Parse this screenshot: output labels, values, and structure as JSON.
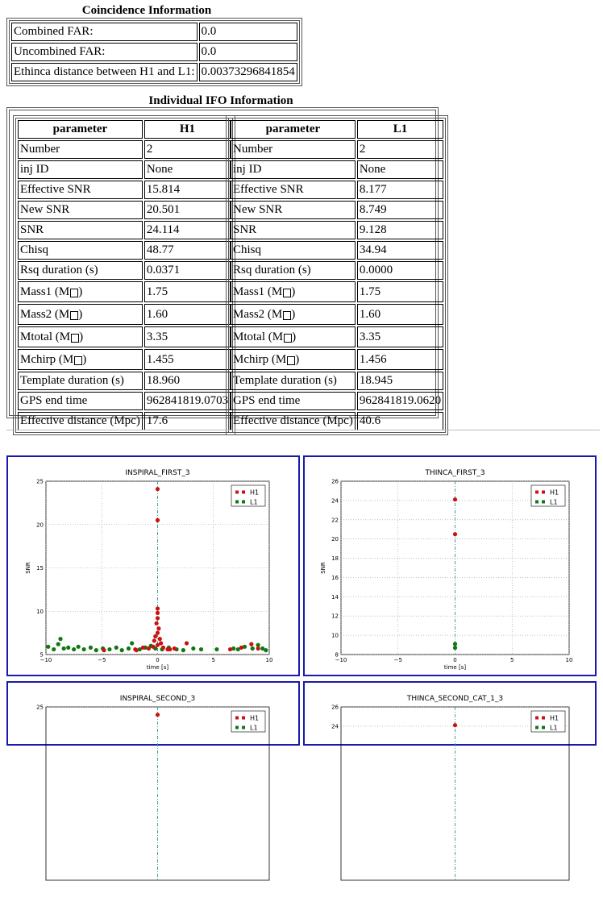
{
  "coincidence": {
    "title": "Coincidence Information",
    "rows": [
      {
        "label": "Combined FAR:",
        "value": "0.0"
      },
      {
        "label": "Uncombined FAR:",
        "value": "0.0"
      },
      {
        "label": "Ethinca distance between H1 and L1:",
        "value": "0.00373296841854"
      }
    ]
  },
  "ifo": {
    "title": "Individual IFO Information",
    "h1": {
      "headers": [
        "parameter",
        "H1"
      ],
      "rows": [
        [
          "Number",
          "2"
        ],
        [
          "inj ID",
          "None"
        ],
        [
          "Effective SNR",
          "15.814"
        ],
        [
          "New SNR",
          "20.501"
        ],
        [
          "SNR",
          "24.114"
        ],
        [
          "Chisq",
          "48.77"
        ],
        [
          "Rsq duration (s)",
          "0.0371"
        ],
        [
          "Mass1 (M",
          "1.75"
        ],
        [
          "Mass2 (M",
          "1.60"
        ],
        [
          "Mtotal (M",
          "3.35"
        ],
        [
          "Mchirp (M",
          "1.455"
        ],
        [
          "Template duration (s)",
          "18.960"
        ],
        [
          "GPS end time",
          "962841819.0703"
        ],
        [
          "Effective distance (Mpc)",
          "17.6"
        ]
      ]
    },
    "l1": {
      "headers": [
        "parameter",
        "L1"
      ],
      "rows": [
        [
          "Number",
          "2"
        ],
        [
          "inj ID",
          "None"
        ],
        [
          "Effective SNR",
          "8.177"
        ],
        [
          "New SNR",
          "8.749"
        ],
        [
          "SNR",
          "9.128"
        ],
        [
          "Chisq",
          "34.94"
        ],
        [
          "Rsq duration (s)",
          "0.0000"
        ],
        [
          "Mass1 (M",
          "1.75"
        ],
        [
          "Mass2 (M",
          "1.60"
        ],
        [
          "Mtotal (M",
          "3.35"
        ],
        [
          "Mchirp (M",
          "1.456"
        ],
        [
          "Template duration (s)",
          "18.945"
        ],
        [
          "GPS end time",
          "962841819.0620"
        ],
        [
          "Effective distance (Mpc)",
          "40.6"
        ]
      ]
    }
  },
  "plots": [
    {
      "title": "INSPIRAL_FIRST_3",
      "xlabel": "time [s]",
      "ylabel": "SNR"
    },
    {
      "title": "THINCA_FIRST_3",
      "xlabel": "time [s]",
      "ylabel": "SNR"
    },
    {
      "title": "INSPIRAL_SECOND_3",
      "xlabel": "",
      "ylabel": ""
    },
    {
      "title": "THINCA_SECOND_CAT_1_3",
      "xlabel": "",
      "ylabel": ""
    }
  ],
  "colors": {
    "h1": "#cc1111",
    "l1": "#117711",
    "vline": "#2a9d8f",
    "panel_border": "#1a1aaa"
  },
  "chart_data": [
    {
      "type": "scatter",
      "title": "INSPIRAL_FIRST_3",
      "xlabel": "time [s]",
      "ylabel": "SNR",
      "xlim": [
        -10,
        10
      ],
      "ylim": [
        5,
        25
      ],
      "xticks": [
        "−10",
        "−5",
        "0",
        "5",
        "10"
      ],
      "yticks": [
        "5",
        "10",
        "15",
        "20",
        "25"
      ],
      "grid": true,
      "legend": "top-right",
      "vline_x": 0,
      "series": [
        {
          "name": "H1",
          "points": [
            [
              0,
              24.1
            ],
            [
              0,
              20.5
            ],
            [
              0,
              10.3
            ],
            [
              0,
              9.8
            ],
            [
              0,
              9.2
            ],
            [
              -0.1,
              8.6
            ],
            [
              0.1,
              8.0
            ],
            [
              0,
              7.5
            ],
            [
              -0.2,
              7.1
            ],
            [
              0.2,
              6.8
            ],
            [
              -0.3,
              6.6
            ],
            [
              0.3,
              6.3
            ],
            [
              0,
              6.1
            ],
            [
              -0.4,
              5.9
            ],
            [
              0.5,
              5.8
            ],
            [
              -0.8,
              5.7
            ],
            [
              0.9,
              5.6
            ],
            [
              -1.3,
              5.8
            ],
            [
              1.5,
              5.7
            ],
            [
              -2.0,
              5.6
            ],
            [
              2.6,
              6.3
            ],
            [
              -4.8,
              5.5
            ],
            [
              6.5,
              5.6
            ],
            [
              7.5,
              5.8
            ],
            [
              8.4,
              6.2
            ],
            [
              9.0,
              5.7
            ],
            [
              -1.9,
              5.5
            ],
            [
              1.1,
              5.6
            ]
          ]
        },
        {
          "name": "L1",
          "points": [
            [
              -9.8,
              5.9
            ],
            [
              -9.3,
              5.6
            ],
            [
              -8.9,
              6.2
            ],
            [
              -8.7,
              6.8
            ],
            [
              -8.4,
              5.7
            ],
            [
              -8.0,
              5.8
            ],
            [
              -7.5,
              5.6
            ],
            [
              -7.1,
              5.9
            ],
            [
              -6.6,
              5.6
            ],
            [
              -6.0,
              5.8
            ],
            [
              -5.5,
              5.5
            ],
            [
              -4.9,
              5.7
            ],
            [
              -4.3,
              5.6
            ],
            [
              -3.7,
              5.8
            ],
            [
              -3.2,
              5.5
            ],
            [
              -2.6,
              5.7
            ],
            [
              -2.3,
              6.3
            ],
            [
              -1.6,
              5.6
            ],
            [
              -1.1,
              5.8
            ],
            [
              -0.6,
              6.0
            ],
            [
              -0.2,
              5.7
            ],
            [
              0.4,
              5.6
            ],
            [
              1.0,
              5.8
            ],
            [
              1.7,
              5.6
            ],
            [
              2.3,
              5.5
            ],
            [
              3.2,
              5.7
            ],
            [
              3.9,
              5.6
            ],
            [
              5.3,
              5.6
            ],
            [
              6.8,
              5.7
            ],
            [
              7.2,
              5.6
            ],
            [
              7.8,
              5.9
            ],
            [
              8.5,
              5.7
            ],
            [
              9.0,
              6.1
            ],
            [
              9.4,
              5.7
            ],
            [
              9.7,
              5.5
            ]
          ]
        }
      ]
    },
    {
      "type": "scatter",
      "title": "THINCA_FIRST_3",
      "xlabel": "time [s]",
      "ylabel": "SNR",
      "xlim": [
        -10,
        10
      ],
      "ylim": [
        8,
        26
      ],
      "xticks": [
        "−10",
        "−5",
        "0",
        "5",
        "10"
      ],
      "yticks": [
        "8",
        "10",
        "12",
        "14",
        "16",
        "18",
        "20",
        "22",
        "24",
        "26"
      ],
      "grid": true,
      "legend": "top-right",
      "vline_x": 0,
      "series": [
        {
          "name": "H1",
          "points": [
            [
              0,
              24.1
            ],
            [
              0,
              20.5
            ]
          ]
        },
        {
          "name": "L1",
          "points": [
            [
              0,
              9.1
            ],
            [
              0,
              8.7
            ]
          ]
        }
      ]
    },
    {
      "type": "scatter",
      "title": "INSPIRAL_SECOND_3",
      "xlim": [
        -10,
        10
      ],
      "ylim": [
        5,
        25
      ],
      "yticks": [
        "25"
      ],
      "grid": true,
      "legend": "top-right",
      "vline_x": 0,
      "series": [
        {
          "name": "H1",
          "points": [
            [
              0,
              24.1
            ]
          ]
        },
        {
          "name": "L1",
          "points": []
        }
      ]
    },
    {
      "type": "scatter",
      "title": "THINCA_SECOND_CAT_1_3",
      "xlim": [
        -10,
        10
      ],
      "ylim": [
        8,
        26
      ],
      "yticks": [
        "26",
        "24"
      ],
      "grid": true,
      "legend": "top-right",
      "vline_x": 0,
      "series": [
        {
          "name": "H1",
          "points": [
            [
              0,
              24.1
            ]
          ]
        },
        {
          "name": "L1",
          "points": []
        }
      ]
    }
  ]
}
